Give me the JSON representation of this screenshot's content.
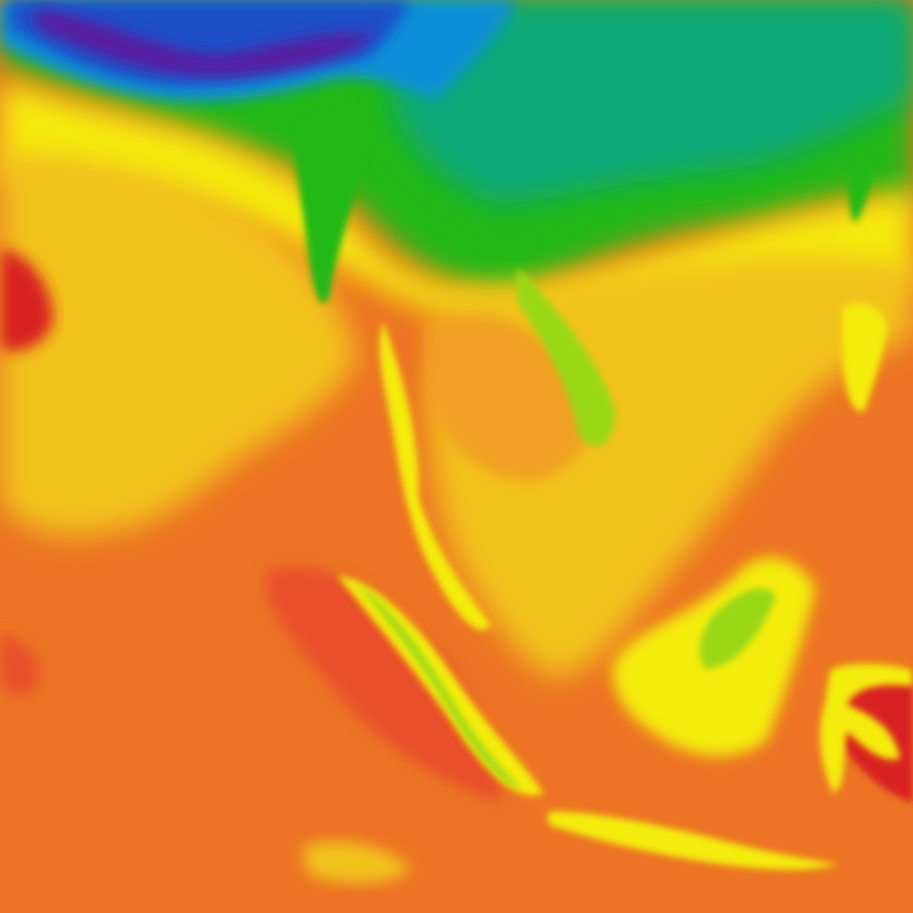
{
  "map": {
    "palette": {
      "cold_deep": "#5a1fa0",
      "cold": "#1f4fc8",
      "cool": "#0a8fd8",
      "teal": "#0aa878",
      "green": "#22b818",
      "lime": "#9ad818",
      "yellow": "#f4ec10",
      "gold": "#f2c21a",
      "amber": "#f0a020",
      "orange": "#ec7424",
      "red_orange": "#e8502a",
      "red": "#d82020"
    }
  }
}
